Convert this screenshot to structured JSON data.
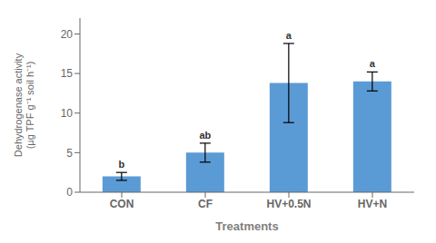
{
  "chart_data": {
    "type": "bar",
    "categories": [
      "CON",
      "CF",
      "HV+0.5N",
      "HV+N"
    ],
    "values": [
      2.0,
      5.0,
      13.8,
      14.0
    ],
    "errors": [
      0.5,
      1.2,
      5.0,
      1.2
    ],
    "annotations": [
      "b",
      "ab",
      "a",
      "a"
    ],
    "color": "#5b9bd5",
    "xlabel": "Treatments",
    "ylabel": "Dehydrogenase activity\n(µg TPF g⁻¹ soil h⁻¹)",
    "ylim": [
      0,
      22
    ],
    "yticks": [
      0,
      5,
      10,
      15,
      20
    ],
    "grid": false
  }
}
